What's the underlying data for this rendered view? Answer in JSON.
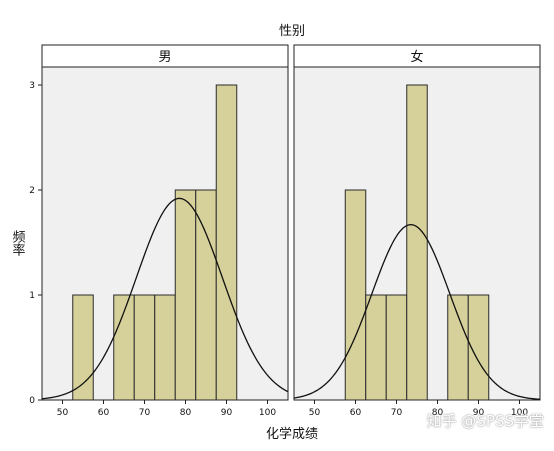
{
  "chart_data": {
    "type": "bar",
    "title": "性别",
    "xlabel": "化学成绩",
    "ylabel": "频率",
    "bin_width": 5,
    "xlim": [
      45,
      105
    ],
    "ylim": [
      0,
      3
    ],
    "x_ticks": [
      50,
      60,
      70,
      80,
      90,
      100
    ],
    "y_ticks": [
      0,
      1,
      2,
      3
    ],
    "colors": {
      "bar": "#d6d09a",
      "bar_edge": "#2a2a2a",
      "panel_bg": "#f0f0f0",
      "curve": "#111111"
    },
    "panels": [
      {
        "name": "男",
        "bins": [
          {
            "x0": 52.5,
            "x1": 57.5,
            "count": 1
          },
          {
            "x0": 62.5,
            "x1": 67.5,
            "count": 1
          },
          {
            "x0": 67.5,
            "x1": 72.5,
            "count": 1
          },
          {
            "x0": 72.5,
            "x1": 77.5,
            "count": 1
          },
          {
            "x0": 77.5,
            "x1": 82.5,
            "count": 2
          },
          {
            "x0": 82.5,
            "x1": 87.5,
            "count": 2
          },
          {
            "x0": 87.5,
            "x1": 92.5,
            "count": 3
          }
        ],
        "normal_curve": {
          "mean": 78.5,
          "sd": 10.5,
          "peak": 1.92
        }
      },
      {
        "name": "女",
        "bins": [
          {
            "x0": 57.5,
            "x1": 62.5,
            "count": 2
          },
          {
            "x0": 62.5,
            "x1": 67.5,
            "count": 1
          },
          {
            "x0": 67.5,
            "x1": 72.5,
            "count": 1
          },
          {
            "x0": 72.5,
            "x1": 77.5,
            "count": 3
          },
          {
            "x0": 82.5,
            "x1": 87.5,
            "count": 1
          },
          {
            "x0": 87.5,
            "x1": 92.5,
            "count": 1
          }
        ],
        "normal_curve": {
          "mean": 73.5,
          "sd": 9.5,
          "peak": 1.67
        }
      }
    ]
  },
  "watermark": "知乎 @SPSS学堂"
}
